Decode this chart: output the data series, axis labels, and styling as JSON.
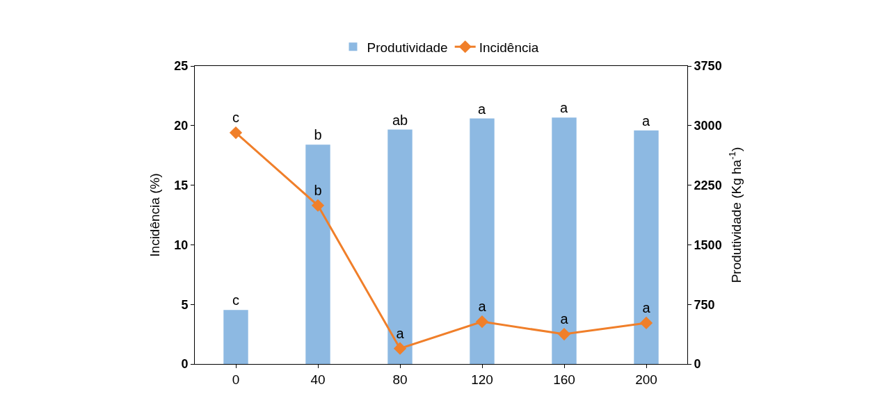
{
  "chart_data": {
    "type": "bar",
    "categories": [
      "0",
      "40",
      "80",
      "120",
      "160",
      "200"
    ],
    "series": [
      {
        "name": "Produtividade",
        "axis": "y2",
        "color": "#8db9e2",
        "values": [
          680,
          2760,
          2950,
          3090,
          3100,
          2940
        ],
        "value_labels": [
          "c",
          "b",
          "ab",
          "a",
          "a",
          "a"
        ]
      },
      {
        "name": "Incidência",
        "type": "line",
        "axis": "y",
        "color": "#f07f2a",
        "values": [
          19.4,
          13.3,
          1.3,
          3.55,
          2.5,
          3.44
        ],
        "value_labels": [
          "c",
          "b",
          "a",
          "a",
          "a",
          "a"
        ],
        "marker": "diamond",
        "line_style": "solid"
      }
    ],
    "ylabel": "Incidência (%)",
    "y2label": "Produtividade (Kg ha$^{-1}$)",
    "ylim": [
      0,
      25
    ],
    "yticks": [
      0,
      5,
      10,
      15,
      20,
      25
    ],
    "y2lim": [
      0,
      3750
    ],
    "y2ticks": [
      0,
      750,
      1500,
      2250,
      3000,
      3750
    ],
    "legend": "top"
  }
}
